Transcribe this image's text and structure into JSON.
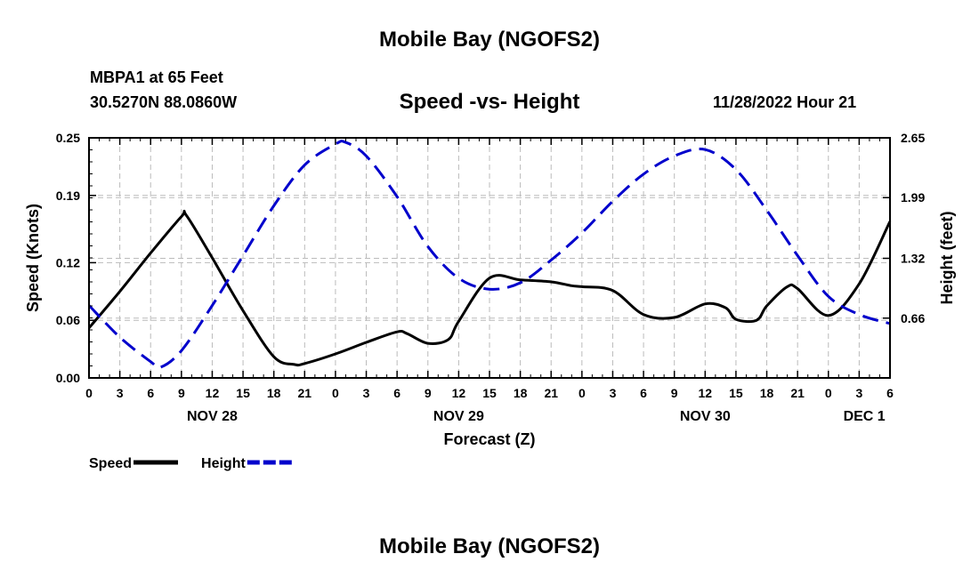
{
  "header": {
    "title": "Mobile Bay (NGOFS2)",
    "station": "MBPA1 at 65 Feet",
    "coords": "30.5270N  88.0860W",
    "timestamp": "11/28/2022 Hour 21"
  },
  "footer": {
    "title": "Mobile Bay (NGOFS2)"
  },
  "chart_data": {
    "type": "line",
    "title": "Speed -vs- Height",
    "xlabel": "Forecast (Z)",
    "ylabel": "Speed (Knots)",
    "y2label": "Height (feet)",
    "x_unit": "hours since NOV 28 00Z",
    "xlim": [
      0,
      78
    ],
    "ylim": [
      0,
      0.25
    ],
    "y2lim": [
      0,
      2.65
    ],
    "x_ticks": [
      0,
      3,
      6,
      9,
      12,
      15,
      18,
      21,
      24,
      27,
      30,
      33,
      36,
      39,
      42,
      45,
      48,
      51,
      54,
      57,
      60,
      63,
      66,
      69,
      72,
      75,
      78
    ],
    "x_tick_labels": [
      "0",
      "3",
      "6",
      "9",
      "12",
      "15",
      "18",
      "21",
      "0",
      "3",
      "6",
      "9",
      "12",
      "15",
      "18",
      "21",
      "0",
      "3",
      "6",
      "9",
      "12",
      "15",
      "18",
      "21",
      "0",
      "3",
      "6"
    ],
    "day_labels": [
      {
        "x": 12,
        "label": "NOV 28"
      },
      {
        "x": 36,
        "label": "NOV 29"
      },
      {
        "x": 60,
        "label": "NOV 30"
      },
      {
        "x": 75.5,
        "label": "DEC 1"
      }
    ],
    "y_ticks": [
      0.0,
      0.06,
      0.12,
      0.19,
      0.25
    ],
    "y_tick_labels": [
      "0.00",
      "0.06",
      "0.12",
      "0.19",
      "0.25"
    ],
    "y2_ticks": [
      0.66,
      1.32,
      1.99,
      2.65
    ],
    "y2_tick_labels": [
      "0.66",
      "1.32",
      "1.99",
      "2.65"
    ],
    "grid": true,
    "legend_position": "bottom-left",
    "series": [
      {
        "name": "Speed",
        "axis": "left",
        "color": "#000000",
        "style": "solid",
        "x": [
          0,
          3,
          6,
          9,
          9.5,
          12,
          15,
          18,
          20,
          21,
          24,
          27,
          30,
          31,
          33,
          35,
          36,
          39,
          42,
          45,
          47,
          48,
          51,
          54,
          57,
          60,
          62,
          63,
          65,
          66,
          68,
          69,
          72,
          75,
          78
        ],
        "y": [
          0.052,
          0.09,
          0.13,
          0.168,
          0.169,
          0.125,
          0.07,
          0.022,
          0.014,
          0.015,
          0.025,
          0.037,
          0.048,
          0.046,
          0.036,
          0.04,
          0.059,
          0.104,
          0.102,
          0.1,
          0.096,
          0.095,
          0.091,
          0.066,
          0.063,
          0.077,
          0.073,
          0.061,
          0.06,
          0.075,
          0.095,
          0.093,
          0.065,
          0.098,
          0.163
        ]
      },
      {
        "name": "Height",
        "axis": "right",
        "color": "#0000cc",
        "style": "dashed",
        "x": [
          0,
          3,
          6,
          7,
          9,
          12,
          15,
          18,
          21,
          24,
          25,
          27,
          30,
          33,
          36,
          39,
          42,
          45,
          48,
          51,
          54,
          57,
          60,
          63,
          66,
          69,
          72,
          75,
          78
        ],
        "y": [
          0.8,
          0.45,
          0.18,
          0.12,
          0.3,
          0.8,
          1.35,
          1.9,
          2.35,
          2.58,
          2.6,
          2.45,
          2.0,
          1.45,
          1.1,
          0.98,
          1.05,
          1.3,
          1.6,
          1.95,
          2.25,
          2.45,
          2.52,
          2.3,
          1.85,
          1.35,
          0.9,
          0.7,
          0.6
        ]
      }
    ]
  }
}
